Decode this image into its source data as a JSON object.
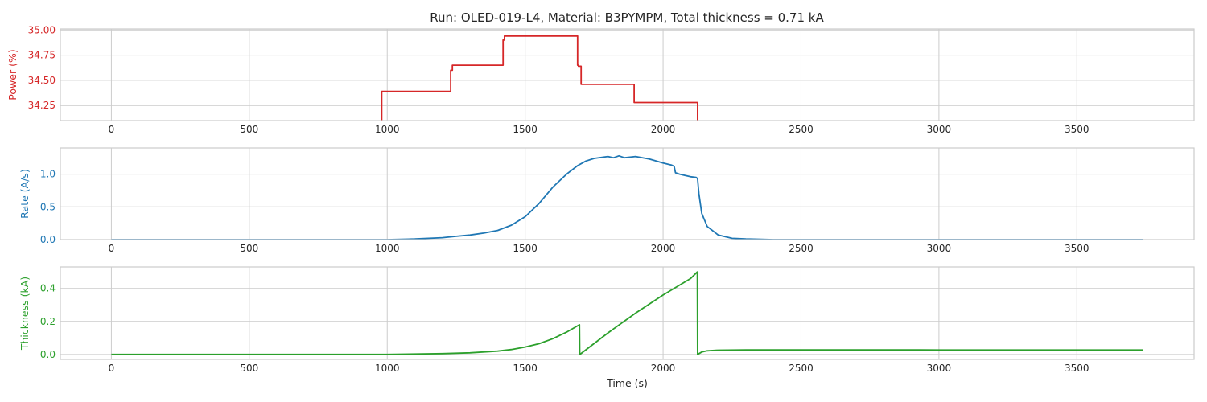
{
  "title": "Run: OLED-019-L4, Material: B3PYMPM, Total thickness = 0.71 kA",
  "chart_data": [
    {
      "type": "line",
      "ylabel": "Power (%)",
      "xlabel": "",
      "color": "#d62728",
      "xlim": [
        -185,
        3925
      ],
      "ylim": [
        34.1,
        35.01
      ],
      "xticks": [
        0,
        500,
        1000,
        1500,
        2000,
        2500,
        3000,
        3500
      ],
      "yticks": [
        34.25,
        34.5,
        34.75,
        35.0
      ],
      "ytick_labels": [
        "34.25",
        "34.50",
        "34.75",
        "35.00"
      ],
      "grid": true,
      "series": [
        {
          "x": [
            980,
            980,
            1230,
            1230,
            1236,
            1236,
            1420,
            1420,
            1425,
            1425,
            1690,
            1690,
            1693,
            1693,
            1703,
            1703,
            1705,
            1705,
            1895,
            1895,
            2125,
            2125
          ],
          "y": [
            34.0,
            34.39,
            34.39,
            34.6,
            34.6,
            34.65,
            34.65,
            34.9,
            34.9,
            34.94,
            34.94,
            34.65,
            34.65,
            34.64,
            34.64,
            34.46,
            34.46,
            34.46,
            34.46,
            34.28,
            34.28,
            34.0
          ]
        }
      ]
    },
    {
      "type": "line",
      "ylabel": "Rate (A/s)",
      "xlabel": "",
      "color": "#1f77b4",
      "xlim": [
        -185,
        3925
      ],
      "ylim": [
        0,
        1.4
      ],
      "xticks": [
        0,
        500,
        1000,
        1500,
        2000,
        2500,
        3000,
        3500
      ],
      "yticks": [
        0,
        0.5,
        1.0
      ],
      "ytick_labels": [
        "0.0",
        "0.5",
        "1.0"
      ],
      "grid": true,
      "series": [
        {
          "x": [
            0,
            500,
            1000,
            1100,
            1200,
            1250,
            1300,
            1350,
            1400,
            1450,
            1500,
            1550,
            1600,
            1650,
            1690,
            1720,
            1750,
            1800,
            1820,
            1840,
            1860,
            1900,
            1950,
            2000,
            2030,
            2040,
            2045,
            2060,
            2080,
            2100,
            2120,
            2125,
            2130,
            2140,
            2160,
            2200,
            2250,
            2300,
            2400,
            2500,
            3000,
            3500,
            3740
          ],
          "y": [
            0.0,
            0.0,
            0.0,
            0.01,
            0.03,
            0.05,
            0.07,
            0.1,
            0.14,
            0.22,
            0.35,
            0.55,
            0.8,
            1.0,
            1.13,
            1.2,
            1.24,
            1.27,
            1.25,
            1.28,
            1.25,
            1.27,
            1.23,
            1.17,
            1.14,
            1.12,
            1.02,
            1.0,
            0.98,
            0.96,
            0.95,
            0.93,
            0.7,
            0.4,
            0.2,
            0.07,
            0.02,
            0.01,
            0.0,
            0.0,
            0.0,
            0.0,
            0.0
          ]
        }
      ]
    },
    {
      "type": "line",
      "ylabel": "Thickness (kA)",
      "xlabel": "Time (s)",
      "color": "#2ca02c",
      "xlim": [
        -185,
        3925
      ],
      "ylim": [
        -0.03,
        0.53
      ],
      "xticks": [
        0,
        500,
        1000,
        1500,
        2000,
        2500,
        3000,
        3500
      ],
      "yticks": [
        0.0,
        0.2,
        0.4
      ],
      "ytick_labels": [
        "0.0",
        "0.2",
        "0.4"
      ],
      "grid": true,
      "series": [
        {
          "x": [
            0,
            1000,
            1200,
            1300,
            1400,
            1450,
            1500,
            1550,
            1600,
            1650,
            1697,
            1698,
            1700,
            1800,
            1900,
            2000,
            2050,
            2100,
            2124,
            2125,
            2140,
            2160,
            2200,
            2300,
            2900,
            3000,
            3740
          ],
          "y": [
            0.0,
            0.0,
            0.005,
            0.01,
            0.02,
            0.03,
            0.045,
            0.065,
            0.095,
            0.135,
            0.18,
            0.0,
            0.002,
            0.13,
            0.25,
            0.36,
            0.41,
            0.46,
            0.5,
            0.0,
            0.015,
            0.022,
            0.026,
            0.028,
            0.028,
            0.027,
            0.027
          ]
        }
      ]
    }
  ]
}
